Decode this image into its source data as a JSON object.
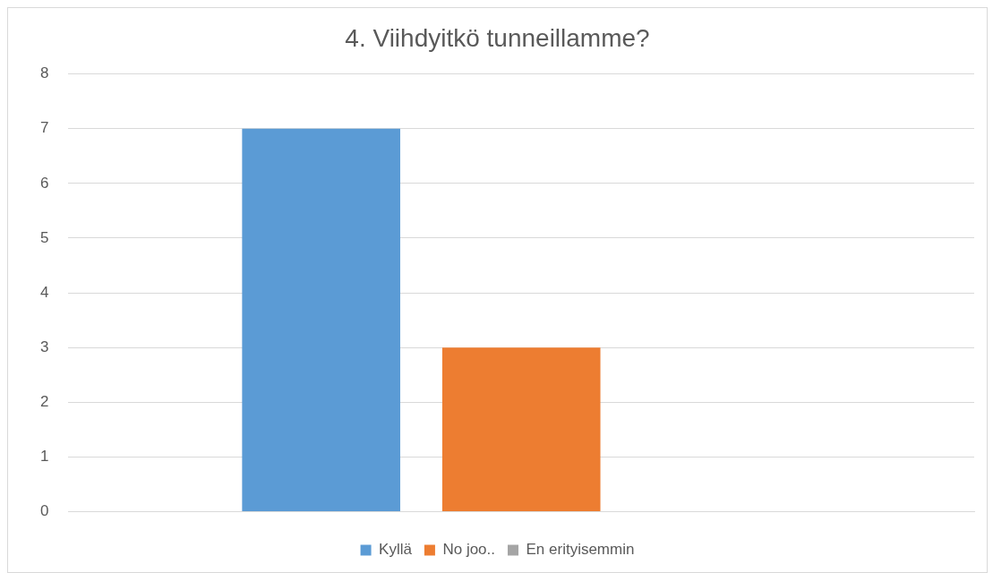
{
  "chart_data": {
    "type": "bar",
    "title": "4. Viihdyitkö tunneillamme?",
    "categories": [
      null
    ],
    "series": [
      {
        "name": "Kyllä",
        "color": "#5b9bd5",
        "values": [
          7
        ]
      },
      {
        "name": "No joo..",
        "color": "#ed7d31",
        "values": [
          3
        ]
      },
      {
        "name": "En erityisemmin",
        "color": "#a5a5a5",
        "values": [
          0
        ]
      }
    ],
    "ylim": [
      0,
      8
    ],
    "yticks": [
      0,
      1,
      2,
      3,
      4,
      5,
      6,
      7,
      8
    ],
    "grid": "y",
    "legend": "bottom"
  }
}
